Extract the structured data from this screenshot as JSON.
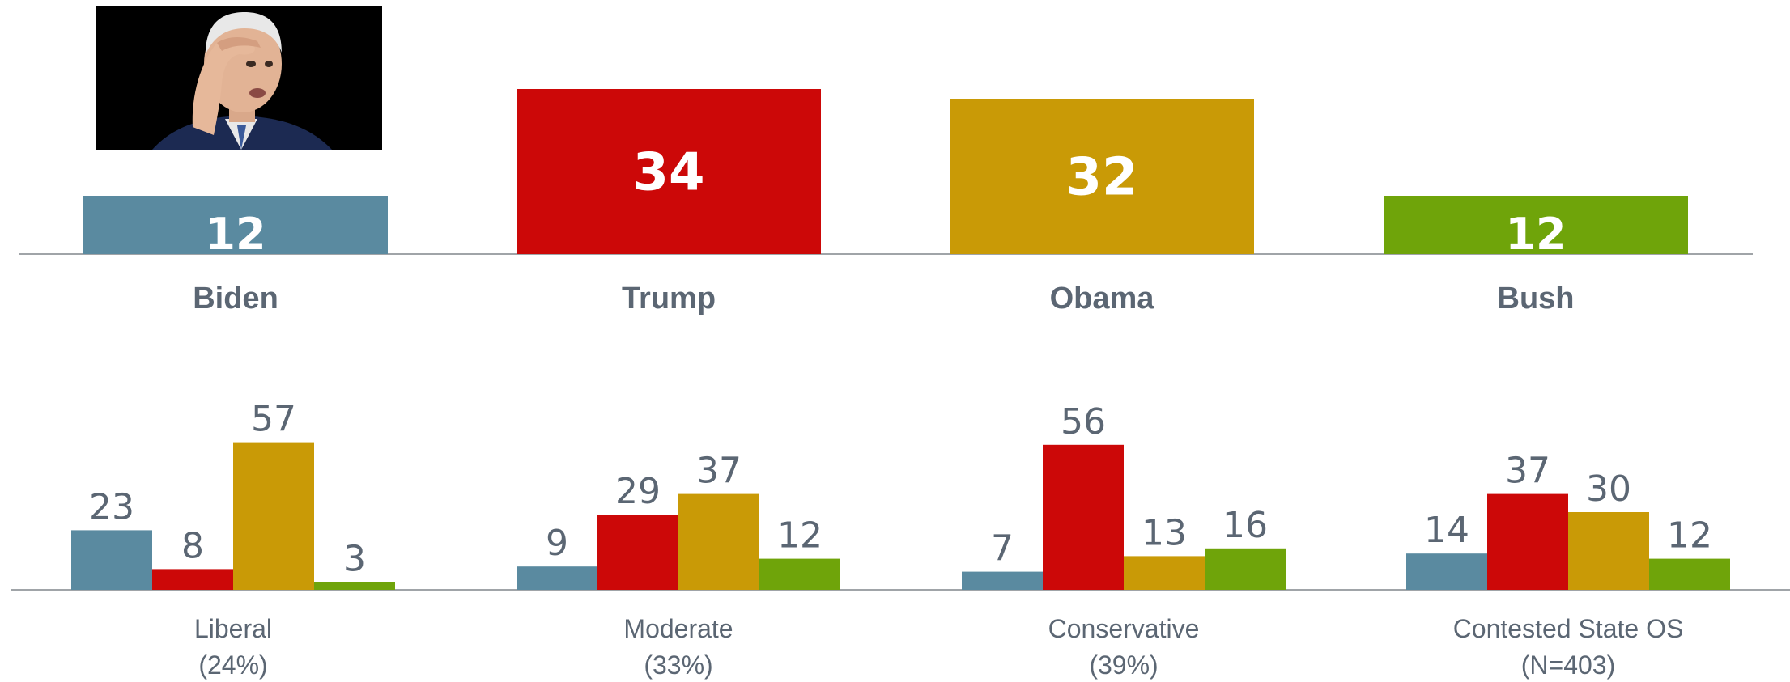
{
  "colors": {
    "Biden": "#5a8aa0",
    "Trump": "#cc0808",
    "Obama": "#c99a06",
    "Bush": "#6fa40a",
    "axis": "#a0a4a8",
    "label_text": "#5b6673",
    "value_text_light": "#ffffff"
  },
  "photo": {
    "icon": "person-photo-icon"
  },
  "chart_data": [
    {
      "type": "bar",
      "categories": [
        "Biden",
        "Trump",
        "Obama",
        "Bush"
      ],
      "values": [
        12,
        34,
        32,
        12
      ],
      "title": "",
      "xlabel": "",
      "ylabel": "",
      "ylim": [
        0,
        40
      ],
      "grid": false,
      "legend": "none"
    },
    {
      "type": "bar",
      "categories": [
        {
          "line1": "Liberal",
          "line2": "(24%)"
        },
        {
          "line1": "Moderate",
          "line2": "(33%)"
        },
        {
          "line1": "Conservative",
          "line2": "(39%)"
        },
        {
          "line1": "Contested State OS",
          "line2": "(N=403)"
        }
      ],
      "series": [
        {
          "key": "Biden",
          "values": [
            23,
            9,
            7,
            14
          ]
        },
        {
          "key": "Trump",
          "values": [
            8,
            29,
            56,
            37
          ]
        },
        {
          "key": "Obama",
          "values": [
            57,
            37,
            13,
            30
          ]
        },
        {
          "key": "Bush",
          "values": [
            3,
            12,
            16,
            12
          ]
        }
      ],
      "title": "",
      "xlabel": "",
      "ylabel": "",
      "ylim": [
        0,
        60
      ],
      "grid": false,
      "legend": "none"
    }
  ]
}
